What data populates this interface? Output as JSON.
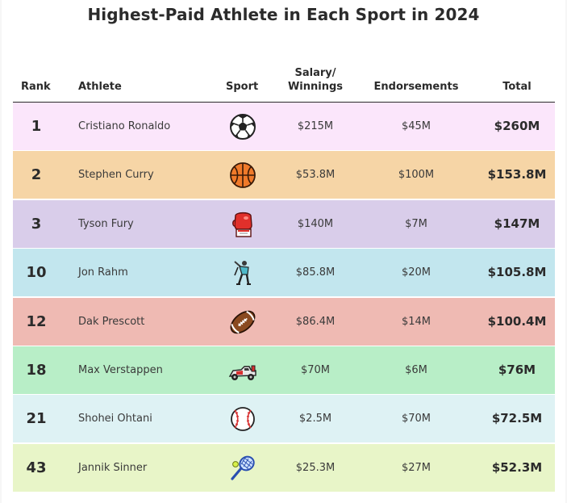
{
  "title": "Highest-Paid Athlete in Each Sport in 2024",
  "headers": {
    "rank": "Rank",
    "athlete": "Athlete",
    "sport": "Sport",
    "salary_line1": "Salary/",
    "salary_line2": "Winnings",
    "endorsements": "Endorsements",
    "total": "Total"
  },
  "rows": [
    {
      "rank": "1",
      "athlete": "Cristiano Ronaldo",
      "sport_icon": "soccer-ball-icon",
      "salary": "$215M",
      "endorsements": "$45M",
      "total": "$260M",
      "color": "#fbe6fb"
    },
    {
      "rank": "2",
      "athlete": "Stephen Curry",
      "sport_icon": "basketball-icon",
      "salary": "$53.8M",
      "endorsements": "$100M",
      "total": "$153.8M",
      "color": "#f6d5a6"
    },
    {
      "rank": "3",
      "athlete": "Tyson Fury",
      "sport_icon": "boxing-glove-icon",
      "salary": "$140M",
      "endorsements": "$7M",
      "total": "$147M",
      "color": "#d9cdea"
    },
    {
      "rank": "10",
      "athlete": "Jon Rahm",
      "sport_icon": "golfer-icon",
      "salary": "$85.8M",
      "endorsements": "$20M",
      "total": "$105.8M",
      "color": "#c2e6ee"
    },
    {
      "rank": "12",
      "athlete": "Dak Prescott",
      "sport_icon": "american-football-icon",
      "salary": "$86.4M",
      "endorsements": "$14M",
      "total": "$100.4M",
      "color": "#efbab3"
    },
    {
      "rank": "18",
      "athlete": "Max Verstappen",
      "sport_icon": "race-car-icon",
      "salary": "$70M",
      "endorsements": "$6M",
      "total": "$76M",
      "color": "#b8eec7"
    },
    {
      "rank": "21",
      "athlete": "Shohei Ohtani",
      "sport_icon": "baseball-icon",
      "salary": "$2.5M",
      "endorsements": "$70M",
      "total": "$72.5M",
      "color": "#def2f4"
    },
    {
      "rank": "43",
      "athlete": "Jannik Sinner",
      "sport_icon": "tennis-racket-icon",
      "salary": "$25.3M",
      "endorsements": "$27M",
      "total": "$52.3M",
      "color": "#e8f5c8"
    }
  ]
}
